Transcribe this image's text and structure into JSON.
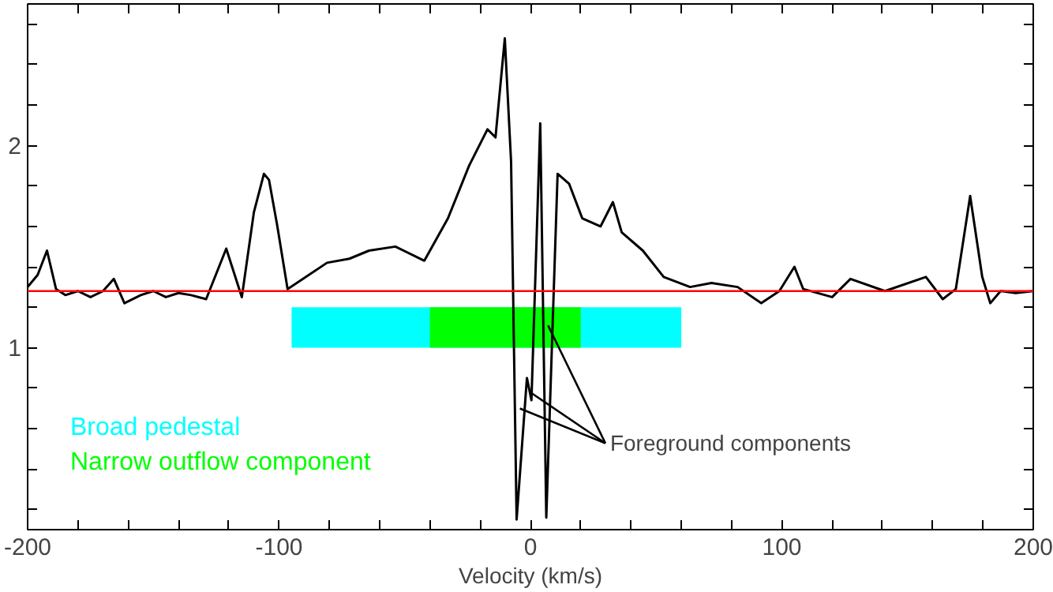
{
  "chart_data": {
    "type": "line",
    "xlabel": "Velocity (km/s)",
    "xlim": [
      -200,
      200
    ],
    "ylim": [
      0.1,
      2.7
    ],
    "xticks": [
      -200,
      {
        "value": -180,
        "label": null
      },
      {
        "value": -160,
        "label": null
      },
      {
        "value": -140,
        "label": null
      },
      {
        "value": -120,
        "label": null
      },
      -100,
      {
        "value": -80,
        "label": null
      },
      {
        "value": -60,
        "label": null
      },
      {
        "value": -40,
        "label": null
      },
      {
        "value": -20,
        "label": null
      },
      0,
      {
        "value": 20,
        "label": null
      },
      {
        "value": 40,
        "label": null
      },
      {
        "value": 60,
        "label": null
      },
      {
        "value": 80,
        "label": null
      },
      100,
      {
        "value": 120,
        "label": null
      },
      {
        "value": 140,
        "label": null
      },
      {
        "value": 160,
        "label": null
      },
      {
        "value": 180,
        "label": null
      },
      200
    ],
    "yticks": [
      {
        "value": 0.2,
        "label": null
      },
      {
        "value": 0.4,
        "label": null
      },
      {
        "value": 0.6,
        "label": null
      },
      {
        "value": 0.8,
        "label": null
      },
      1,
      {
        "value": 1.2,
        "label": null
      },
      {
        "value": 1.4,
        "label": null
      },
      {
        "value": 1.6,
        "label": null
      },
      {
        "value": 1.8,
        "label": null
      },
      2,
      {
        "value": 2.2,
        "label": null
      },
      {
        "value": 2.4,
        "label": null
      },
      {
        "value": 2.6,
        "label": null
      }
    ],
    "grid": false,
    "marker": "none",
    "line_style": "solid",
    "series": [
      {
        "color": "#000000",
        "x": [
          -200,
          -196,
          -192.3,
          -188.7,
          -185,
          -180,
          -175,
          -170,
          -165.7,
          -161.5,
          -155,
          -150,
          -145,
          -140,
          -135,
          -129,
          -121,
          -114.8,
          -110,
          -106,
          -104,
          -100.8,
          -96.6,
          -89.3,
          -80.9,
          -72,
          -64.2,
          -53.7,
          -42.2,
          -32.8,
          -24.4,
          -17.1,
          -13.9,
          -10.2,
          -7.7,
          -5.5,
          -1.4,
          0.4,
          3.9,
          6.3,
          10.8,
          15.4,
          20.6,
          27.9,
          32.8,
          36.3,
          44.7,
          53,
          63.5,
          72,
          82.4,
          91.8,
          99,
          105,
          108.5,
          120,
          127.3,
          141,
          157.3,
          164,
          169.2,
          174.9,
          179.7,
          182.9,
          187,
          193,
          200
        ],
        "values": [
          1.3,
          1.36,
          1.48,
          1.29,
          1.26,
          1.28,
          1.25,
          1.28,
          1.34,
          1.22,
          1.26,
          1.28,
          1.25,
          1.27,
          1.26,
          1.24,
          1.49,
          1.25,
          1.67,
          1.86,
          1.83,
          1.61,
          1.29,
          1.35,
          1.42,
          1.44,
          1.48,
          1.5,
          1.43,
          1.64,
          1.9,
          2.08,
          2.04,
          2.53,
          1.92,
          0.15,
          0.85,
          0.74,
          2.11,
          0.16,
          1.86,
          1.81,
          1.64,
          1.6,
          1.72,
          1.57,
          1.48,
          1.35,
          1.3,
          1.32,
          1.3,
          1.22,
          1.28,
          1.4,
          1.29,
          1.25,
          1.34,
          1.28,
          1.35,
          1.24,
          1.29,
          1.75,
          1.35,
          1.22,
          1.28,
          1.27,
          1.28
        ]
      }
    ],
    "ref_lines": [
      {
        "axis": "y",
        "value": 1.28,
        "color": "#ff0000",
        "line_style": "solid"
      }
    ],
    "bands": [
      {
        "axis": "x",
        "from": -95,
        "to": 60,
        "label": "Broad pedestal",
        "color": "#00ffff"
      },
      {
        "axis": "x",
        "from": -40,
        "to": 20,
        "label": "Narrow outflow component",
        "color": "#00ff00"
      }
    ],
    "annotations": [
      {
        "text": "Foreground components",
        "x": 7,
        "y": 1.11
      }
    ]
  }
}
